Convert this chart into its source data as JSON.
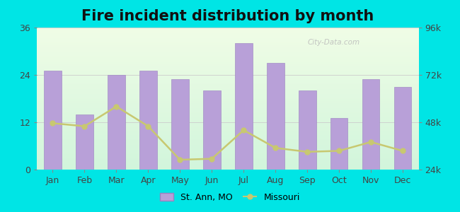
{
  "title": "Fire incident distribution by month",
  "months": [
    "Jan",
    "Feb",
    "Mar",
    "Apr",
    "May",
    "Jun",
    "Jul",
    "Aug",
    "Sep",
    "Oct",
    "Nov",
    "Dec"
  ],
  "bar_values": [
    25,
    14,
    24,
    25,
    23,
    20,
    32,
    27,
    20,
    13,
    23,
    21
  ],
  "line_values": [
    47500,
    46000,
    56000,
    46000,
    29000,
    29500,
    44000,
    35000,
    33000,
    33500,
    38000,
    33500
  ],
  "bar_color": "#b8a0d8",
  "bar_edge_color": "#9a80c0",
  "line_color": "#c8c870",
  "line_marker_color": "#c8c870",
  "bg_color": "#00e5e5",
  "left_ylim": [
    0,
    36
  ],
  "left_yticks": [
    0,
    12,
    24,
    36
  ],
  "right_ylim": [
    24000,
    96000
  ],
  "right_yticks": [
    24000,
    48000,
    72000,
    96000
  ],
  "right_yticklabels": [
    "24k",
    "48k",
    "72k",
    "96k"
  ],
  "title_fontsize": 15,
  "tick_fontsize": 9,
  "legend_fontsize": 9,
  "watermark": "City-Data.com"
}
